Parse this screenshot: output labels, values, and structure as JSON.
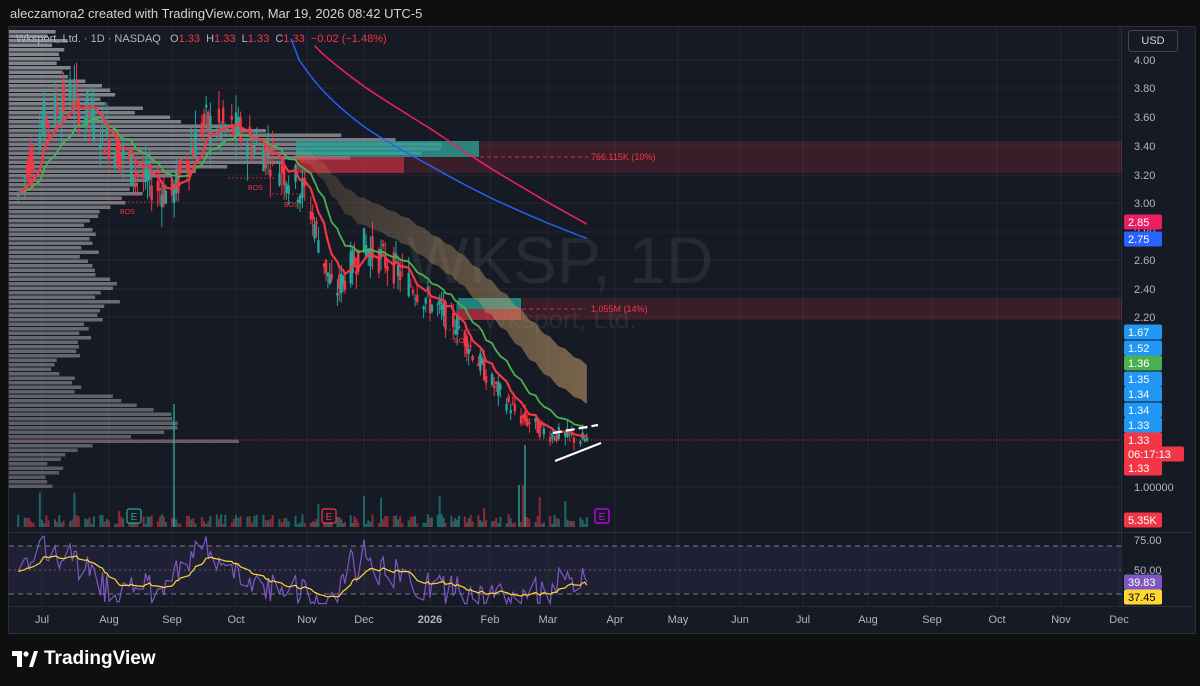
{
  "header": {
    "author_line": "aleczamora2 created with TradingView.com, Mar 19, 2026 08:42 UTC-5"
  },
  "legend": {
    "symbol_text": "Wksport, Ltd. · 1D · NASDAQ",
    "o_label": "O",
    "o_value": "1.33",
    "h_label": "H",
    "h_value": "1.33",
    "l_label": "L",
    "l_value": "1.33",
    "c_label": "C",
    "c_value": "1.33",
    "change": "−0.02 (−1.48%)"
  },
  "currency": "USD",
  "watermark": {
    "ticker": "WKSP, 1D",
    "name": "Wksport, Ltd."
  },
  "footer": {
    "brand": "TradingView"
  },
  "colors": {
    "up": "#26a69a",
    "down": "#f23645",
    "sma200": "#e91e63",
    "sma100": "#2962ff",
    "ema_fast": "#f23645",
    "ema_slow": "#4caf50",
    "cloud": "#c8a06a",
    "rsi": "#7e57c2",
    "rsi_ma": "#fdd835"
  },
  "chart_data": [
    {
      "type": "candlestick",
      "title": "",
      "y_axis_ticks": [
        "4.00",
        "3.80",
        "3.60",
        "3.40",
        "3.20",
        "3.00",
        "2.80",
        "2.60",
        "2.40",
        "2.20",
        "1.00000"
      ],
      "x_axis_ticks": [
        "Jul",
        "Aug",
        "Sep",
        "Oct",
        "Nov",
        "Dec",
        "2026",
        "Feb",
        "Mar",
        "Apr",
        "May",
        "Jun",
        "Jul",
        "Aug",
        "Sep",
        "Oct",
        "Nov",
        "Dec"
      ],
      "price_path": [
        {
          "date": "Jun 20 2025",
          "close": 3.05
        },
        {
          "date": "Jul 1 2025",
          "close": 3.55
        },
        {
          "date": "Jul 15 2025",
          "close": 3.75
        },
        {
          "date": "Aug 1 2025",
          "close": 3.45
        },
        {
          "date": "Aug 15 2025",
          "close": 3.2
        },
        {
          "date": "Sep 1 2025",
          "close": 3.05
        },
        {
          "date": "Sep 15 2025",
          "close": 3.55
        },
        {
          "date": "Oct 1 2025",
          "close": 3.5
        },
        {
          "date": "Oct 15 2025",
          "close": 3.35
        },
        {
          "date": "Nov 1 2025",
          "close": 3.05
        },
        {
          "date": "Nov 15 2025",
          "close": 2.35
        },
        {
          "date": "Dec 1 2025",
          "close": 2.7
        },
        {
          "date": "Dec 15 2025",
          "close": 2.55
        },
        {
          "date": "Jan 1 2026",
          "close": 2.3
        },
        {
          "date": "Jan 15 2026",
          "close": 2.15
        },
        {
          "date": "Feb 1 2026",
          "close": 1.75
        },
        {
          "date": "Feb 15 2026",
          "close": 1.5
        },
        {
          "date": "Mar 1 2026",
          "close": 1.38
        },
        {
          "date": "Mar 19 2026",
          "close": 1.33
        }
      ],
      "price_scale_labels": [
        {
          "text": "2.85",
          "color": "#e91e63"
        },
        {
          "text": "2.75",
          "color": "#2962ff"
        },
        {
          "text": "1.67",
          "color": "#2196f3"
        },
        {
          "text": "1.52",
          "color": "#2196f3"
        },
        {
          "text": "1.36",
          "color": "#4caf50"
        },
        {
          "text": "1.35",
          "color": "#2196f3"
        },
        {
          "text": "1.34",
          "color": "#2196f3"
        },
        {
          "text": "1.34",
          "color": "#2196f3"
        },
        {
          "text": "1.33",
          "color": "#2196f3"
        },
        {
          "text": "1.33",
          "color": "#f23645"
        },
        {
          "text": "06:17:13",
          "color": "#f23645"
        },
        {
          "text": "1.33",
          "color": "#f23645"
        },
        {
          "text": "5.35K",
          "color": "#f23645"
        }
      ],
      "zones": [
        {
          "text": "766.115K (10%)",
          "price_low": 3.22,
          "price_high": 3.42
        },
        {
          "text": "1.055M (14%)",
          "price_low": 2.2,
          "price_high": 2.3
        }
      ],
      "bos_labels": [
        "BOS",
        "BOS",
        "BOS",
        "BOS",
        "BOS"
      ],
      "earnings_markers": [
        "E",
        "E",
        "E"
      ]
    },
    {
      "type": "line",
      "title": "",
      "y_axis_ticks": [
        "75.00",
        "50.00"
      ],
      "value_labels": [
        {
          "text": "39.83",
          "color": "#7e57c2"
        },
        {
          "text": "37.45",
          "color": "#fdd835"
        }
      ],
      "levels": [
        70,
        50,
        30
      ]
    }
  ]
}
